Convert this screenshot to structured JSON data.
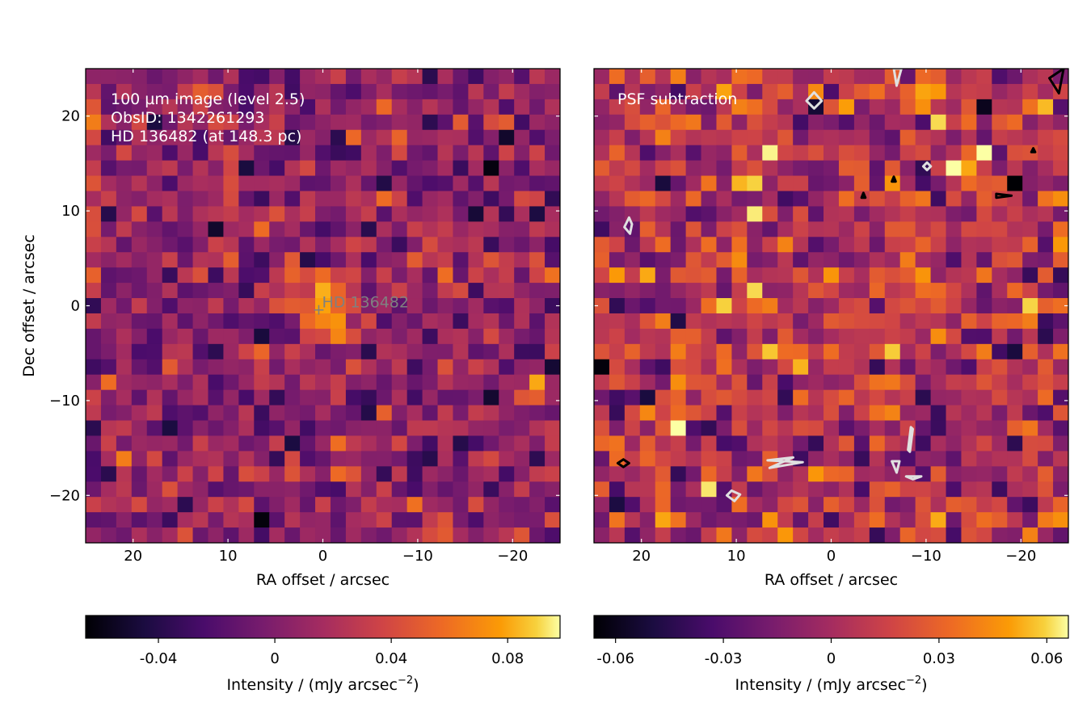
{
  "chart_data": [
    {
      "type": "heatmap",
      "panel": "left",
      "annotations": [
        "100 µm image (level 2.5)",
        "ObsID: 1342261293",
        "HD 136482 (at 148.3 pc)"
      ],
      "marker_label": "HD 136482",
      "marker": {
        "x": 0,
        "y": 0
      },
      "xlabel": "RA offset / arcsec",
      "ylabel": "Dec offset / arcsec",
      "xlim": [
        25,
        -25
      ],
      "ylim": [
        -25,
        25
      ],
      "xticks": [
        20,
        10,
        0,
        -10,
        -20
      ],
      "xtick_labels": [
        "20",
        "10",
        "0",
        "−10",
        "−20"
      ],
      "yticks": [
        20,
        10,
        0,
        -10,
        -20
      ],
      "ytick_labels": [
        "20",
        "10",
        "0",
        "−10",
        "−20"
      ],
      "grid": false,
      "colormap": "inferno",
      "color_range": [
        -0.065,
        0.098
      ],
      "colorbar": {
        "label": "Intensity / (mJy arcsec−2)",
        "ticks": [
          -0.04,
          0,
          0.04,
          0.08
        ],
        "tick_labels": [
          "-0.04",
          "0",
          "0.04",
          "0.08"
        ]
      },
      "peak": {
        "x": 0,
        "y": 0,
        "value": 0.098
      }
    },
    {
      "type": "heatmap",
      "panel": "right",
      "annotations": [
        "PSF subtraction"
      ],
      "xlabel": "RA offset / arcsec",
      "xlim": [
        25,
        -25
      ],
      "ylim": [
        -25,
        25
      ],
      "xticks": [
        20,
        10,
        0,
        -10,
        -20
      ],
      "xtick_labels": [
        "20",
        "10",
        "0",
        "−10",
        "−20"
      ],
      "grid": false,
      "colormap": "inferno",
      "color_range": [
        -0.066,
        0.066
      ],
      "contours": true,
      "colorbar": {
        "label": "Intensity / (mJy arcsec−2)",
        "ticks": [
          -0.06,
          -0.03,
          0,
          0.03,
          0.06
        ],
        "tick_labels": [
          "-0.06",
          "-0.03",
          "0",
          "0.03",
          "0.06"
        ]
      }
    }
  ],
  "colors": {
    "contour_light": "#e0e0e0",
    "contour_dark": "#000000",
    "annotation_text": "#ffffff",
    "marker": "#808080"
  }
}
